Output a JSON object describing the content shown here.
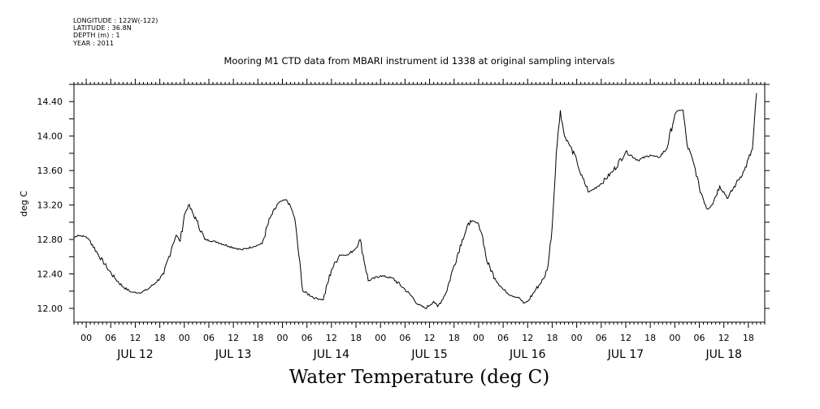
{
  "header": {
    "longitude": "LONGITUDE : 122W(-122)",
    "latitude": "LATITUDE : 36.8N",
    "depth": "DEPTH (m) : 1",
    "year": "YEAR : 2011"
  },
  "chart_data": {
    "type": "line",
    "title": "Mooring M1 CTD data from MBARI instrument id 1338 at original sampling intervals",
    "xlabel": "",
    "ylabel": "deg C",
    "bottom_title": "Water Temperature (deg C)",
    "xlim": [
      "2011-07-11 21:00",
      "2011-07-18 22:00"
    ],
    "ylim": [
      11.84,
      14.6
    ],
    "y_ticks": [
      "12.00",
      "12.40",
      "12.80",
      "13.20",
      "13.60",
      "14.00",
      "14.40"
    ],
    "x_hour_ticks": [
      "00",
      "06",
      "12",
      "18",
      "00",
      "06",
      "12",
      "18",
      "00",
      "06",
      "12",
      "18",
      "00",
      "06",
      "12",
      "18",
      "00",
      "06",
      "12",
      "18",
      "00",
      "06",
      "12",
      "18",
      "00",
      "06",
      "12",
      "18"
    ],
    "x_day_labels": [
      "JUL 12",
      "JUL 13",
      "JUL 14",
      "JUL 15",
      "JUL 16",
      "JUL 17",
      "JUL 18"
    ],
    "grid": false,
    "series": [
      {
        "x": [
          "2011-07-11 21:00",
          "2011-07-11 22:00",
          "2011-07-12 00:00",
          "2011-07-12 01:00",
          "2011-07-12 03:00",
          "2011-07-12 05:00",
          "2011-07-12 07:00",
          "2011-07-12 09:00",
          "2011-07-12 11:00",
          "2011-07-12 13:00",
          "2011-07-12 15:00",
          "2011-07-12 17:00",
          "2011-07-12 19:00",
          "2011-07-12 21:00",
          "2011-07-12 22:00",
          "2011-07-12 23:00",
          "2011-07-13 00:00",
          "2011-07-13 01:00",
          "2011-07-13 03:00",
          "2011-07-13 05:00",
          "2011-07-13 08:00",
          "2011-07-13 11:00",
          "2011-07-13 14:00",
          "2011-07-13 17:00",
          "2011-07-13 19:00",
          "2011-07-13 21:00",
          "2011-07-13 23:00",
          "2011-07-14 00:00",
          "2011-07-14 01:00",
          "2011-07-14 02:00",
          "2011-07-14 03:00",
          "2011-07-14 05:00",
          "2011-07-14 08:00",
          "2011-07-14 10:00",
          "2011-07-14 12:00",
          "2011-07-14 14:00",
          "2011-07-14 16:00",
          "2011-07-14 18:00",
          "2011-07-14 19:00",
          "2011-07-14 21:00",
          "2011-07-15 00:00",
          "2011-07-15 03:00",
          "2011-07-15 06:00",
          "2011-07-15 08:00",
          "2011-07-15 09:00",
          "2011-07-15 11:00",
          "2011-07-15 13:00",
          "2011-07-15 14:00",
          "2011-07-15 16:00",
          "2011-07-15 18:00",
          "2011-07-15 20:00",
          "2011-07-15 22:00",
          "2011-07-16 00:00",
          "2011-07-16 01:00",
          "2011-07-16 02:00",
          "2011-07-16 04:00",
          "2011-07-16 06:00",
          "2011-07-16 08:00",
          "2011-07-16 10:00",
          "2011-07-16 11:00",
          "2011-07-16 12:00",
          "2011-07-16 14:00",
          "2011-07-16 16:00",
          "2011-07-16 17:00",
          "2011-07-16 18:00",
          "2011-07-16 19:00",
          "2011-07-16 20:00",
          "2011-07-16 21:00",
          "2011-07-16 22:00",
          "2011-07-17 00:00",
          "2011-07-17 01:00",
          "2011-07-17 03:00",
          "2011-07-17 04:00",
          "2011-07-17 06:00",
          "2011-07-17 09:00",
          "2011-07-17 12:00",
          "2011-07-17 15:00",
          "2011-07-17 18:00",
          "2011-07-17 20:00",
          "2011-07-17 22:00",
          "2011-07-18 00:00",
          "2011-07-18 01:00",
          "2011-07-18 02:00",
          "2011-07-18 03:00",
          "2011-07-18 05:00",
          "2011-07-18 06:00",
          "2011-07-18 08:00",
          "2011-07-18 09:00",
          "2011-07-18 11:00",
          "2011-07-18 13:00",
          "2011-07-18 15:00",
          "2011-07-18 17:00",
          "2011-07-18 19:00",
          "2011-07-18 20:00"
        ],
        "y": [
          12.82,
          12.85,
          12.83,
          12.78,
          12.62,
          12.48,
          12.35,
          12.25,
          12.19,
          12.18,
          12.22,
          12.3,
          12.4,
          12.72,
          12.85,
          12.78,
          13.08,
          13.2,
          13.02,
          12.8,
          12.77,
          12.72,
          12.68,
          12.72,
          12.75,
          13.05,
          13.22,
          13.25,
          13.26,
          13.18,
          13.05,
          12.2,
          12.12,
          12.1,
          12.45,
          12.62,
          12.62,
          12.7,
          12.8,
          12.32,
          12.38,
          12.35,
          12.22,
          12.12,
          12.05,
          12.0,
          12.08,
          12.02,
          12.18,
          12.5,
          12.8,
          13.02,
          12.98,
          12.83,
          12.55,
          12.35,
          12.22,
          12.15,
          12.12,
          12.06,
          12.08,
          12.22,
          12.35,
          12.5,
          12.95,
          13.8,
          14.3,
          14.0,
          13.92,
          13.72,
          13.55,
          13.35,
          13.38,
          13.45,
          13.6,
          13.82,
          13.72,
          13.78,
          13.75,
          13.85,
          14.25,
          14.3,
          14.3,
          13.9,
          13.62,
          13.4,
          13.15,
          13.2,
          13.42,
          13.28,
          13.45,
          13.6,
          13.85,
          14.5
        ]
      }
    ]
  }
}
